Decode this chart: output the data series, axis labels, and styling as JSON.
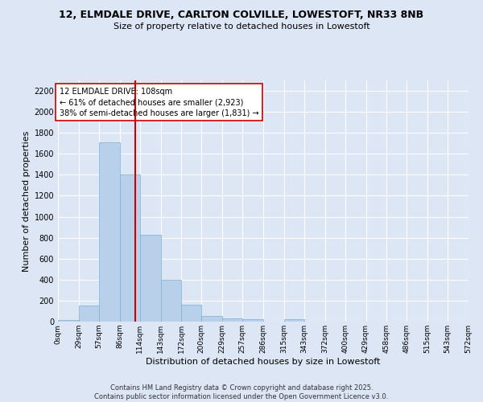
{
  "title1": "12, ELMDALE DRIVE, CARLTON COLVILLE, LOWESTOFT, NR33 8NB",
  "title2": "Size of property relative to detached houses in Lowestoft",
  "xlabel": "Distribution of detached houses by size in Lowestoft",
  "ylabel": "Number of detached properties",
  "bins": [
    "0sqm",
    "29sqm",
    "57sqm",
    "86sqm",
    "114sqm",
    "143sqm",
    "172sqm",
    "200sqm",
    "229sqm",
    "257sqm",
    "286sqm",
    "315sqm",
    "343sqm",
    "372sqm",
    "400sqm",
    "429sqm",
    "458sqm",
    "486sqm",
    "515sqm",
    "543sqm",
    "572sqm"
  ],
  "bin_edges": [
    0,
    29,
    57,
    86,
    114,
    143,
    172,
    200,
    229,
    257,
    286,
    315,
    343,
    372,
    400,
    429,
    458,
    486,
    515,
    543,
    572
  ],
  "values": [
    15,
    155,
    1710,
    1400,
    830,
    400,
    160,
    55,
    30,
    25,
    0,
    25,
    0,
    0,
    0,
    0,
    0,
    0,
    0,
    0
  ],
  "bar_color": "#b8d0ea",
  "bar_edge_color": "#7aafd4",
  "vline_x": 108,
  "vline_color": "#cc0000",
  "annotation_text": "12 ELMDALE DRIVE: 108sqm\n← 61% of detached houses are smaller (2,923)\n38% of semi-detached houses are larger (1,831) →",
  "annotation_box_color": "#ffffff",
  "annotation_box_edge": "#cc0000",
  "ylim": [
    0,
    2300
  ],
  "yticks": [
    0,
    200,
    400,
    600,
    800,
    1000,
    1200,
    1400,
    1600,
    1800,
    2000,
    2200
  ],
  "background_color": "#dce6f5",
  "grid_color": "#ffffff",
  "footer_text": "Contains HM Land Registry data © Crown copyright and database right 2025.\nContains public sector information licensed under the Open Government Licence v3.0."
}
